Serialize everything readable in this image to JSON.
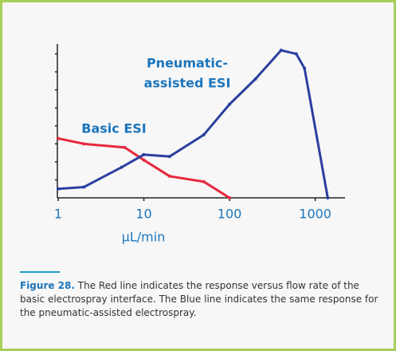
{
  "chart_data": {
    "type": "line",
    "x_label": "µL/min",
    "xscale": "log",
    "xlim": [
      1,
      2000
    ],
    "xticks": [
      1,
      10,
      100,
      1000
    ],
    "ylim": [
      0,
      9
    ],
    "yticks": [
      1,
      2,
      3,
      4,
      5,
      6,
      7,
      8
    ],
    "series": [
      {
        "color": "#e8283c",
        "x": [
          1,
          2,
          6,
          10,
          20,
          50,
          100
        ],
        "values": [
          3.3,
          3.0,
          2.8,
          2.1,
          1.2,
          0.9,
          0
        ]
      },
      {
        "color": "#2b3f9f",
        "x": [
          1,
          2,
          5.5,
          10,
          20,
          50,
          100,
          200,
          400,
          600,
          750,
          1400
        ],
        "values": [
          0.5,
          0.6,
          1.7,
          2.4,
          2.3,
          3.5,
          5.2,
          6.6,
          8.2,
          8.0,
          7.2,
          0
        ]
      }
    ],
    "annotations": [
      "Pneumatic-",
      "assisted ESI",
      "Basic ESI"
    ],
    "annotation_color": "#1b75bc"
  },
  "caption": {
    "label": "Figure 28.",
    "text": "The Red line indicates the response versus flow rate of the basic electrospray interface. The Blue line indicates the same response for the pneumatic-assisted electrospray."
  }
}
